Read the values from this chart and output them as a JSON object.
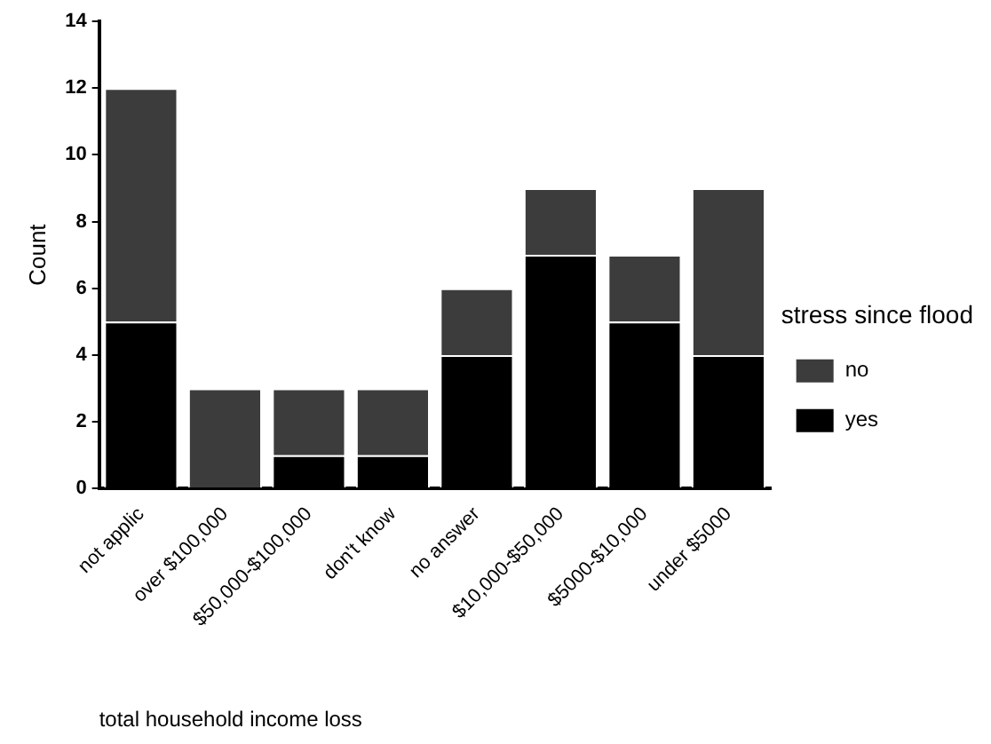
{
  "chart_data": {
    "type": "bar",
    "stacked": true,
    "xlabel": "total household income loss",
    "ylabel": "Count",
    "legend_title": "stress since flood",
    "legend": "right",
    "categories": [
      "not applic",
      "over $100,000",
      "$50,000-$100,000",
      "don't know",
      "no answer",
      "$10,000-$50,000",
      "$5000-$10,000",
      "under $5000"
    ],
    "series": [
      {
        "name": "yes",
        "color": "#000000",
        "values": [
          5,
          0,
          1,
          1,
          4,
          7,
          5,
          4
        ]
      },
      {
        "name": "no",
        "color": "#3c3c3c",
        "values": [
          7,
          3,
          2,
          2,
          2,
          2,
          2,
          5
        ]
      }
    ],
    "ylim": [
      0,
      14
    ],
    "yticks": [
      0,
      2,
      4,
      6,
      8,
      10,
      12,
      14
    ],
    "grid": false
  }
}
